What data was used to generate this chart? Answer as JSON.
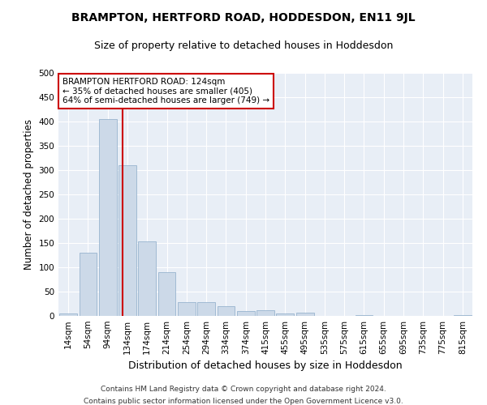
{
  "title": "BRAMPTON, HERTFORD ROAD, HODDESDON, EN11 9JL",
  "subtitle": "Size of property relative to detached houses in Hoddesdon",
  "xlabel": "Distribution of detached houses by size in Hoddesdon",
  "ylabel": "Number of detached properties",
  "bar_color": "#ccd9e8",
  "bar_edge_color": "#8aaac8",
  "background_color": "#e8eef6",
  "grid_color": "#ffffff",
  "vline_color": "#cc0000",
  "vline_x_index": 2.75,
  "annotation_text": "BRAMPTON HERTFORD ROAD: 124sqm\n← 35% of detached houses are smaller (405)\n64% of semi-detached houses are larger (749) →",
  "annotation_box_facecolor": "#ffffff",
  "annotation_box_edgecolor": "#cc0000",
  "categories": [
    "14sqm",
    "54sqm",
    "94sqm",
    "134sqm",
    "174sqm",
    "214sqm",
    "254sqm",
    "294sqm",
    "334sqm",
    "374sqm",
    "415sqm",
    "455sqm",
    "495sqm",
    "535sqm",
    "575sqm",
    "615sqm",
    "655sqm",
    "695sqm",
    "735sqm",
    "775sqm",
    "815sqm"
  ],
  "values": [
    5,
    130,
    405,
    310,
    153,
    90,
    28,
    28,
    20,
    10,
    12,
    5,
    6,
    0,
    0,
    2,
    0,
    0,
    0,
    0,
    2
  ],
  "ylim": [
    0,
    500
  ],
  "yticks": [
    0,
    50,
    100,
    150,
    200,
    250,
    300,
    350,
    400,
    450,
    500
  ],
  "footer_line1": "Contains HM Land Registry data © Crown copyright and database right 2024.",
  "footer_line2": "Contains public sector information licensed under the Open Government Licence v3.0.",
  "title_fontsize": 10,
  "subtitle_fontsize": 9,
  "xlabel_fontsize": 9,
  "ylabel_fontsize": 8.5,
  "tick_fontsize": 7.5,
  "annotation_fontsize": 7.5,
  "footer_fontsize": 6.5
}
